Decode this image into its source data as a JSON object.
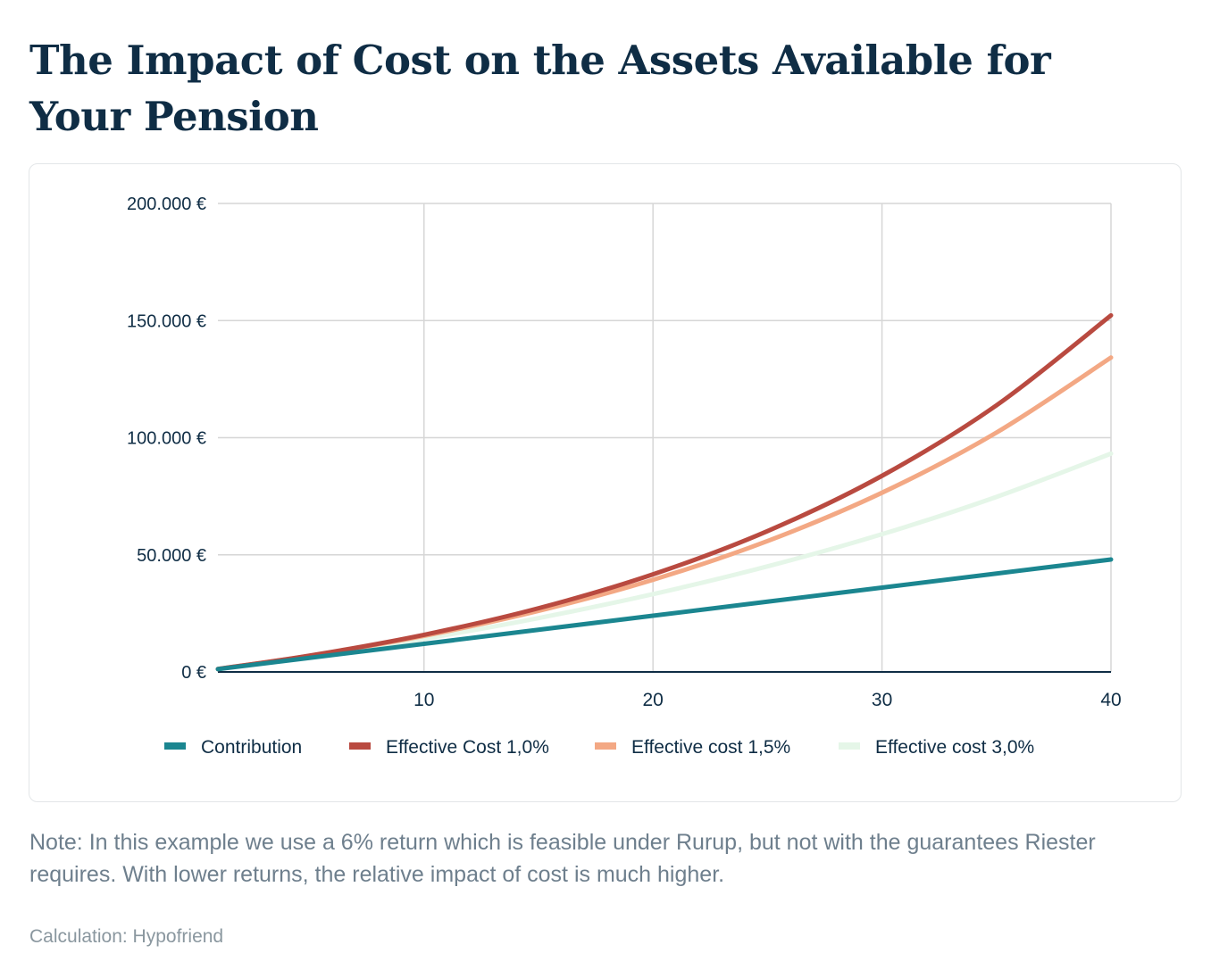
{
  "title": "The Impact of Cost on the Assets Available for Your Pension",
  "note": "Note: In this example we use a 6% return which is feasible under Rurup, but not with the guarantees Riester requires. With lower returns, the relative impact of cost is much higher.",
  "source": "Calculation: Hypofriend",
  "chart_data": {
    "type": "line",
    "title": "",
    "xlabel": "",
    "ylabel": "",
    "xlim": [
      1,
      40
    ],
    "ylim": [
      0,
      200000
    ],
    "x_ticks": [
      10,
      20,
      30,
      40
    ],
    "x_tick_labels": [
      "10",
      "20",
      "30",
      "40"
    ],
    "y_ticks": [
      0,
      50000,
      100000,
      150000,
      200000
    ],
    "y_tick_labels": [
      "0 €",
      "50.000 €",
      "100.000 €",
      "150.000 €",
      "200.000 €"
    ],
    "grid": true,
    "legend_position": "bottom",
    "x": [
      1,
      5,
      10,
      15,
      20,
      25,
      30,
      35,
      40
    ],
    "series": [
      {
        "name": "Contribution",
        "color": "#1b8690",
        "values": [
          1200,
          6000,
          12000,
          18000,
          24000,
          30000,
          36000,
          42000,
          48000
        ]
      },
      {
        "name": "Effective Cost 1,0%",
        "color": "#b94a40",
        "values": [
          1260,
          6962,
          15848,
          27189,
          41663,
          60136,
          83713,
          113804,
          152208
        ]
      },
      {
        "name": "Effective cost 1,5%",
        "color": "#f3a884",
        "values": [
          1254,
          6860,
          15410,
          26064,
          39340,
          55886,
          76503,
          102196,
          134216
        ]
      },
      {
        "name": "Effective cost 3,0%",
        "color": "#e5f6e8",
        "values": [
          1236,
          6562,
          14169,
          22988,
          33212,
          45064,
          58803,
          74731,
          93196
        ]
      }
    ]
  }
}
